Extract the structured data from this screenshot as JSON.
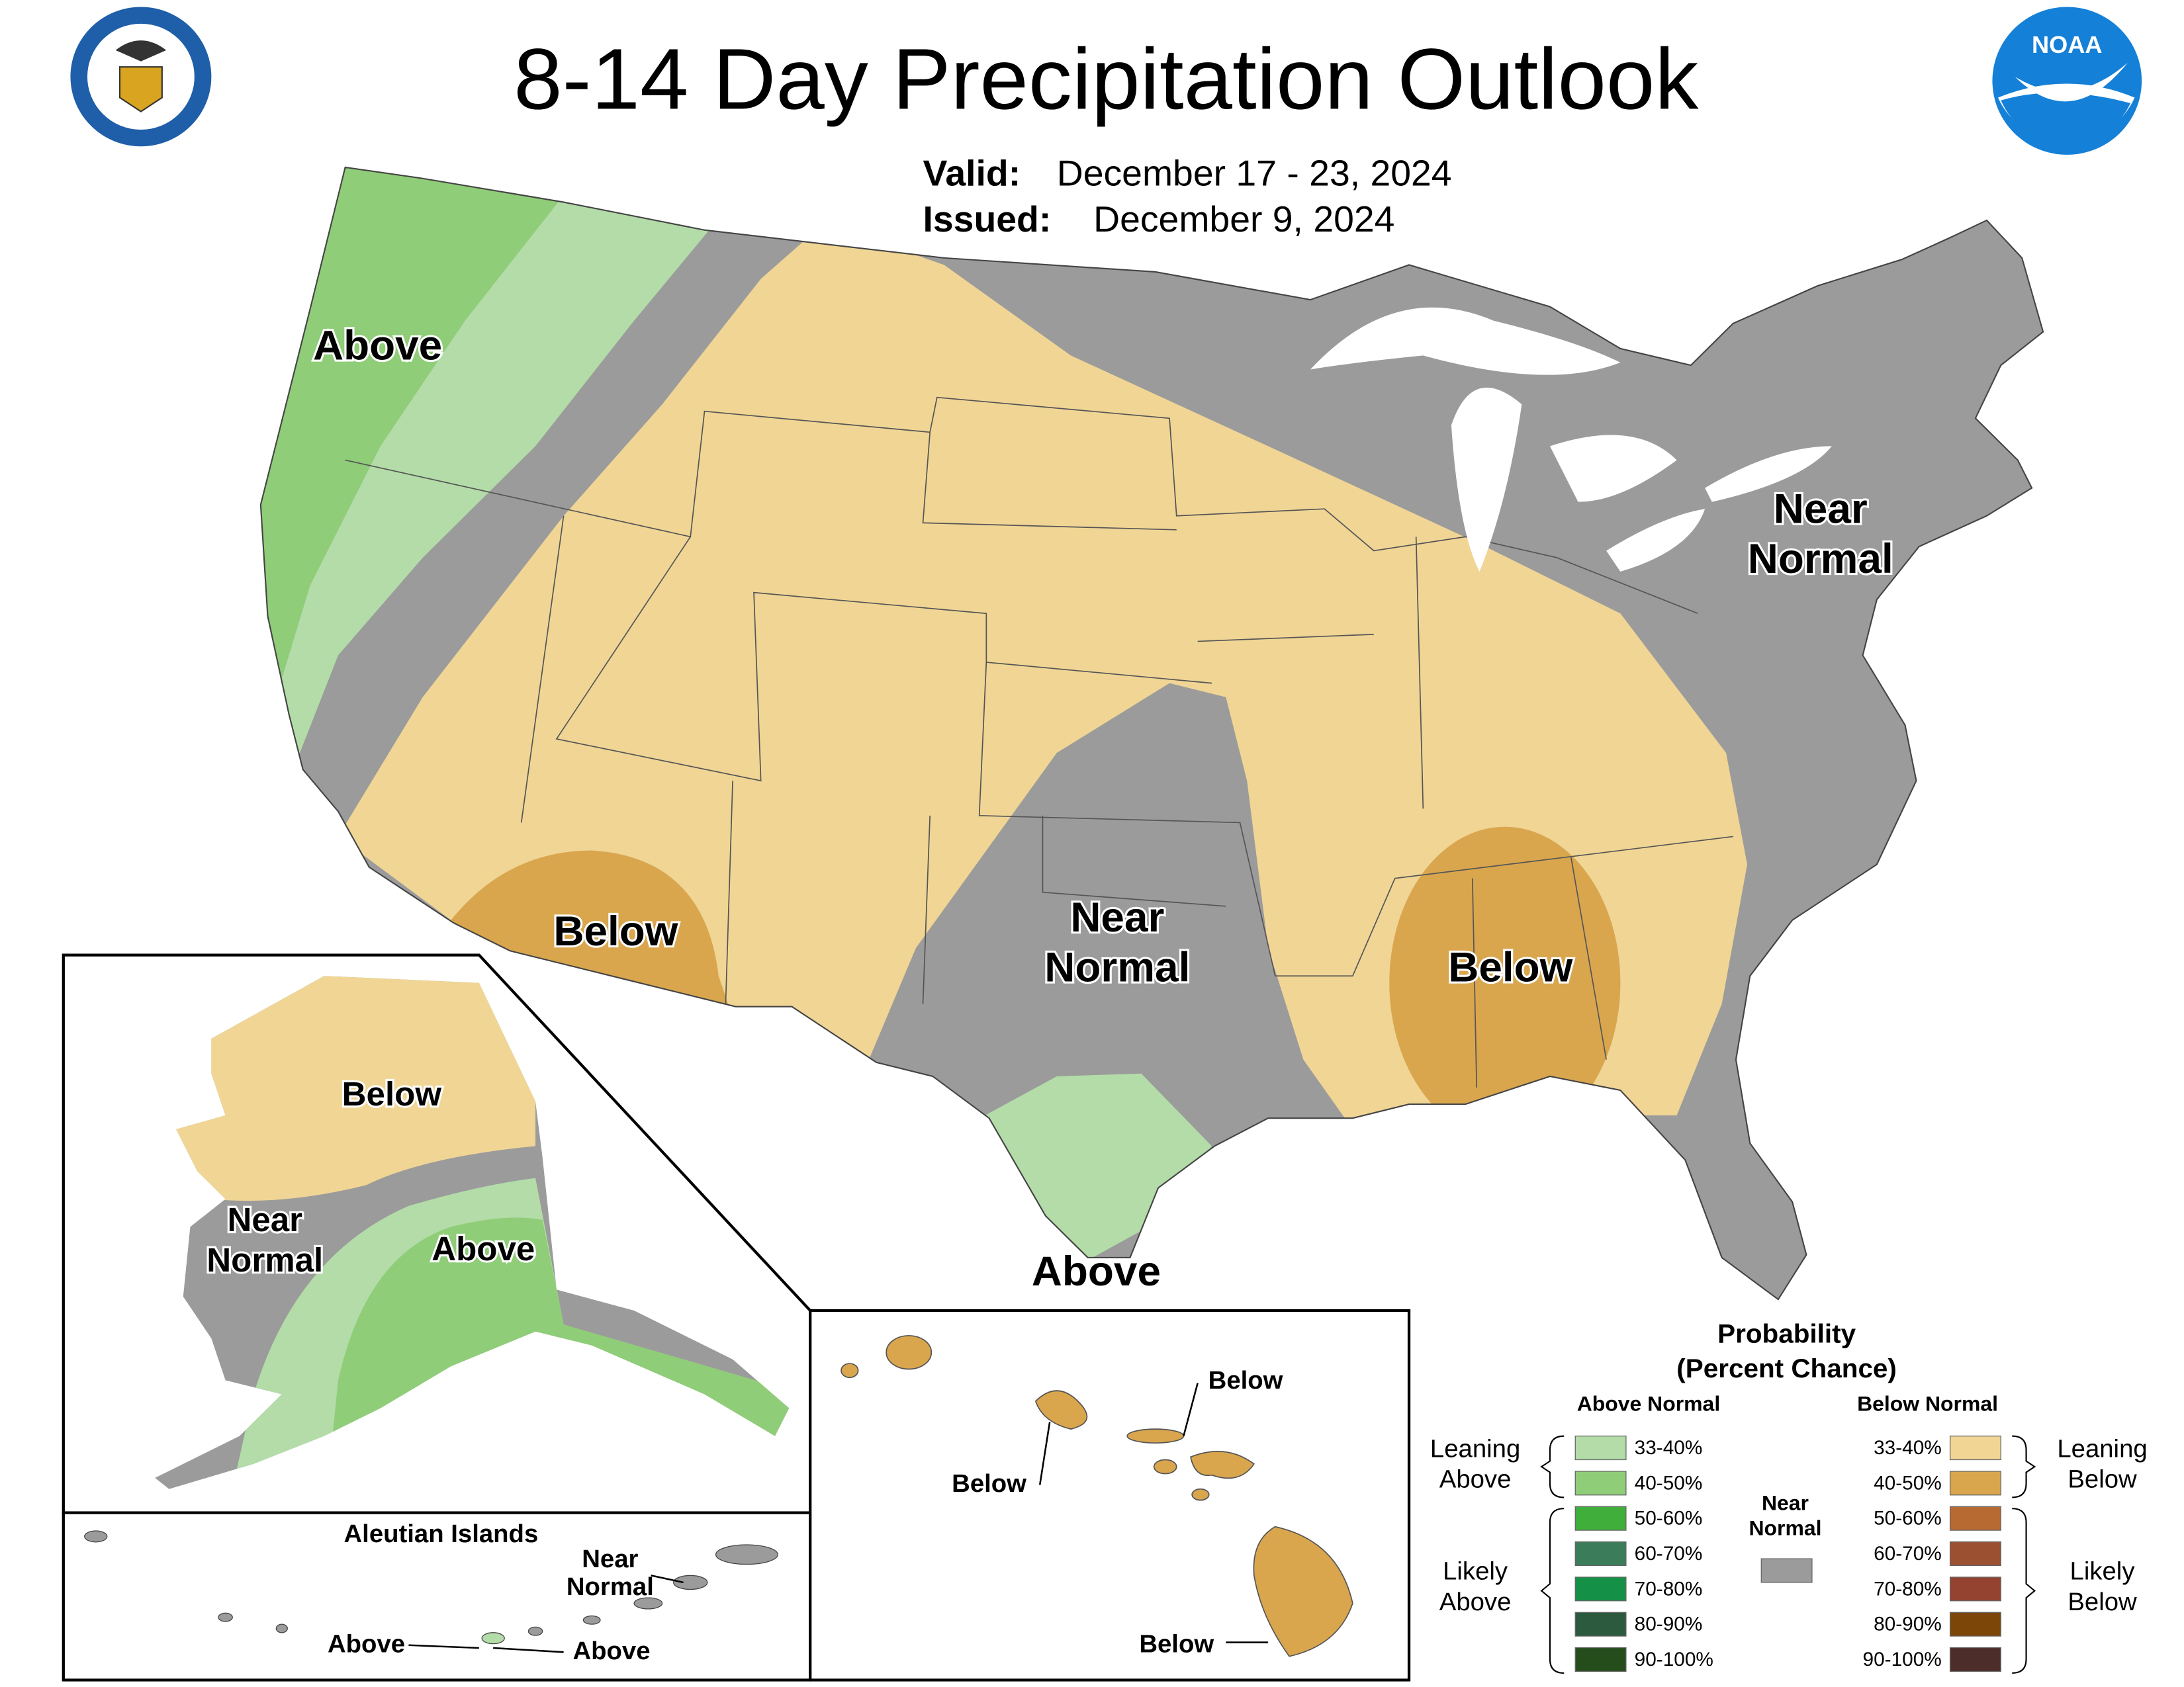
{
  "header": {
    "title": "8-14 Day Precipitation Outlook",
    "valid_label": "Valid:",
    "valid_date": "December 17 - 23, 2024",
    "issued_label": "Issued:",
    "issued_date": "December 9, 2024",
    "noaa_logo": "NOAA"
  },
  "conus_labels": {
    "northwest": "Above",
    "southwest": "Below",
    "plains": [
      "Near",
      "Normal"
    ],
    "southeast": "Below",
    "northeast": [
      "Near",
      "Normal"
    ],
    "texas": "Above"
  },
  "alaska_labels": {
    "north": "Below",
    "west": [
      "Near",
      "Normal"
    ],
    "south": "Above"
  },
  "aleutians": {
    "title": "Aleutian Islands",
    "near": [
      "Near",
      "Normal"
    ],
    "above_west": "Above",
    "above_east": "Above"
  },
  "hawaii_labels": {
    "maui": "Below",
    "oahu": "Below",
    "big_island": "Below"
  },
  "legend": {
    "title": "Probability",
    "subtitle": "(Percent Chance)",
    "above": {
      "heading": "Above Normal",
      "leaning": [
        "Leaning",
        "Above"
      ],
      "likely": [
        "Likely",
        "Above"
      ],
      "items": [
        {
          "label": "33-40%",
          "color": "#b3dca8"
        },
        {
          "label": "40-50%",
          "color": "#8fcd78"
        },
        {
          "label": "50-60%",
          "color": "#3fae3a"
        },
        {
          "label": "60-70%",
          "color": "#3b7d5a"
        },
        {
          "label": "70-80%",
          "color": "#149146"
        },
        {
          "label": "80-90%",
          "color": "#2b5a3e"
        },
        {
          "label": "90-100%",
          "color": "#254d1b"
        }
      ]
    },
    "below": {
      "heading": "Below Normal",
      "leaning": [
        "Leaning",
        "Below"
      ],
      "likely": [
        "Likely",
        "Below"
      ],
      "items": [
        {
          "label": "33-40%",
          "color": "#f0d595"
        },
        {
          "label": "40-50%",
          "color": "#d9a64e"
        },
        {
          "label": "50-60%",
          "color": "#b86a33"
        },
        {
          "label": "60-70%",
          "color": "#9b5031"
        },
        {
          "label": "70-80%",
          "color": "#93432f"
        },
        {
          "label": "80-90%",
          "color": "#7b4608"
        },
        {
          "label": "90-100%",
          "color": "#4d2d2a"
        }
      ]
    },
    "near": {
      "label": [
        "Near",
        "Normal"
      ],
      "color": "#9b9b9b"
    }
  }
}
